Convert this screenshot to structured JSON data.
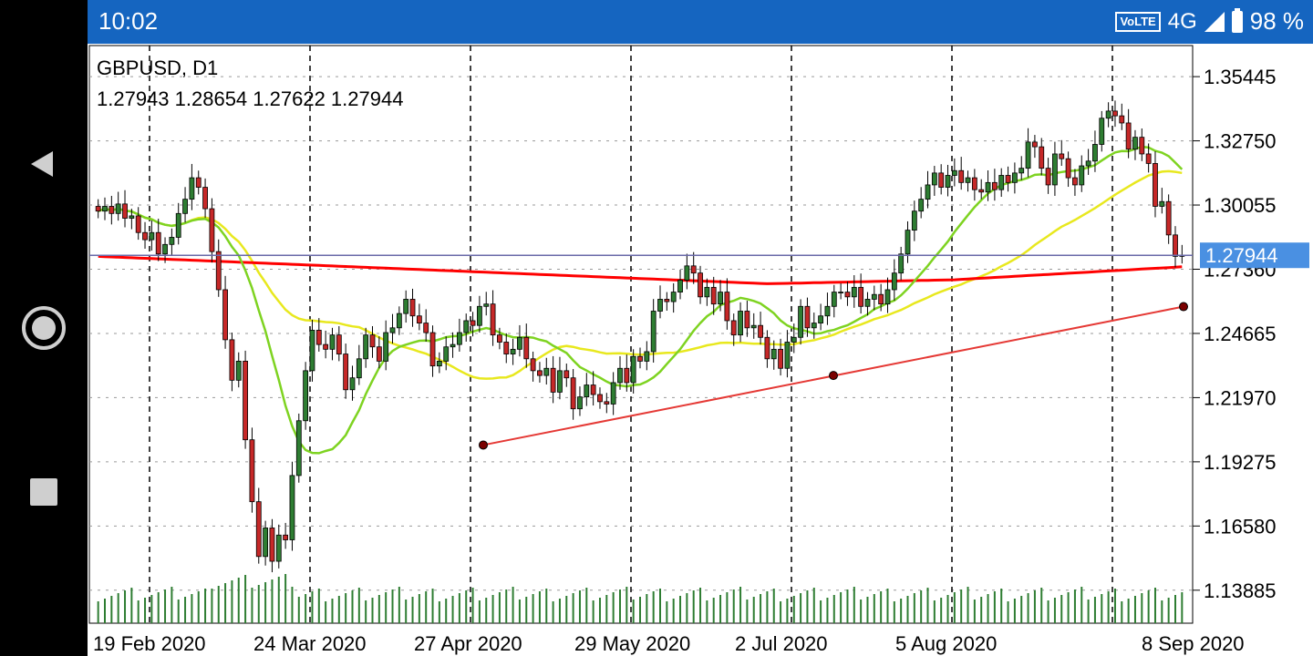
{
  "status_bar": {
    "time": "10:02",
    "volte": "VoLTE",
    "network": "4G",
    "battery": "98 %"
  },
  "nav": {
    "back": "back-icon",
    "home": "home-icon",
    "recents": "recents-icon"
  },
  "chart_header": {
    "symbol": "GBPUSD, D1",
    "ohlc": "1.27943 1.28654 1.27622 1.27944"
  },
  "colors": {
    "bull": "#2e7d32",
    "bear": "#c62828",
    "ma_fast": "#7ed321",
    "ma_mid": "#e8e81e",
    "ma_slow": "#ff0000",
    "volume": "#2e7d32",
    "price_line": "#6a6aa8",
    "price_label": "#4a90e2",
    "trendline": "#e53935"
  },
  "chart_data": {
    "type": "candlestick",
    "symbol": "GBPUSD",
    "timeframe": "D1",
    "current_price": "1.27944",
    "ylim": [
      1.125,
      1.3675
    ],
    "y_ticks": [
      "1.35445",
      "1.32750",
      "1.30055",
      "1.27944",
      "1.27360",
      "1.24665",
      "1.21970",
      "1.19275",
      "1.16580",
      "1.13885"
    ],
    "x_ticks": [
      "19 Feb 2020",
      "24 Mar 2020",
      "27 Apr 2020",
      "29 May 2020",
      "2 Jul 2020",
      "5 Aug 2020",
      "8 Sep 2020"
    ],
    "vertical_separators": true,
    "candles_close": [
      1.298,
      1.3,
      1.297,
      1.301,
      1.295,
      1.296,
      1.289,
      1.286,
      1.289,
      1.28,
      1.284,
      1.287,
      1.297,
      1.303,
      1.312,
      1.308,
      1.299,
      1.281,
      1.265,
      1.244,
      1.227,
      1.235,
      1.202,
      1.176,
      1.153,
      1.165,
      1.151,
      1.162,
      1.16,
      1.187,
      1.21,
      1.231,
      1.248,
      1.242,
      1.24,
      1.246,
      1.238,
      1.223,
      1.228,
      1.236,
      1.246,
      1.241,
      1.235,
      1.247,
      1.249,
      1.255,
      1.261,
      1.254,
      1.251,
      1.247,
      1.233,
      1.235,
      1.241,
      1.242,
      1.247,
      1.252,
      1.25,
      1.258,
      1.259,
      1.246,
      1.243,
      1.238,
      1.24,
      1.245,
      1.236,
      1.231,
      1.229,
      1.232,
      1.222,
      1.231,
      1.228,
      1.215,
      1.22,
      1.225,
      1.221,
      1.218,
      1.217,
      1.226,
      1.232,
      1.226,
      1.237,
      1.235,
      1.239,
      1.256,
      1.261,
      1.26,
      1.264,
      1.269,
      1.275,
      1.272,
      1.262,
      1.266,
      1.259,
      1.264,
      1.252,
      1.246,
      1.256,
      1.249,
      1.25,
      1.245,
      1.236,
      1.24,
      1.232,
      1.243,
      1.245,
      1.258,
      1.249,
      1.251,
      1.254,
      1.258,
      1.264,
      1.264,
      1.262,
      1.266,
      1.258,
      1.261,
      1.263,
      1.259,
      1.265,
      1.272,
      1.28,
      1.29,
      1.298,
      1.303,
      1.309,
      1.314,
      1.308,
      1.313,
      1.315,
      1.31,
      1.312,
      1.307,
      1.306,
      1.31,
      1.307,
      1.313,
      1.31,
      1.314,
      1.316,
      1.327,
      1.325,
      1.316,
      1.309,
      1.322,
      1.32,
      1.312,
      1.309,
      1.317,
      1.319,
      1.326,
      1.337,
      1.34,
      1.338,
      1.335,
      1.324,
      1.329,
      1.322,
      1.318,
      1.3,
      1.302,
      1.288,
      1.279,
      1.2794
    ]
  }
}
